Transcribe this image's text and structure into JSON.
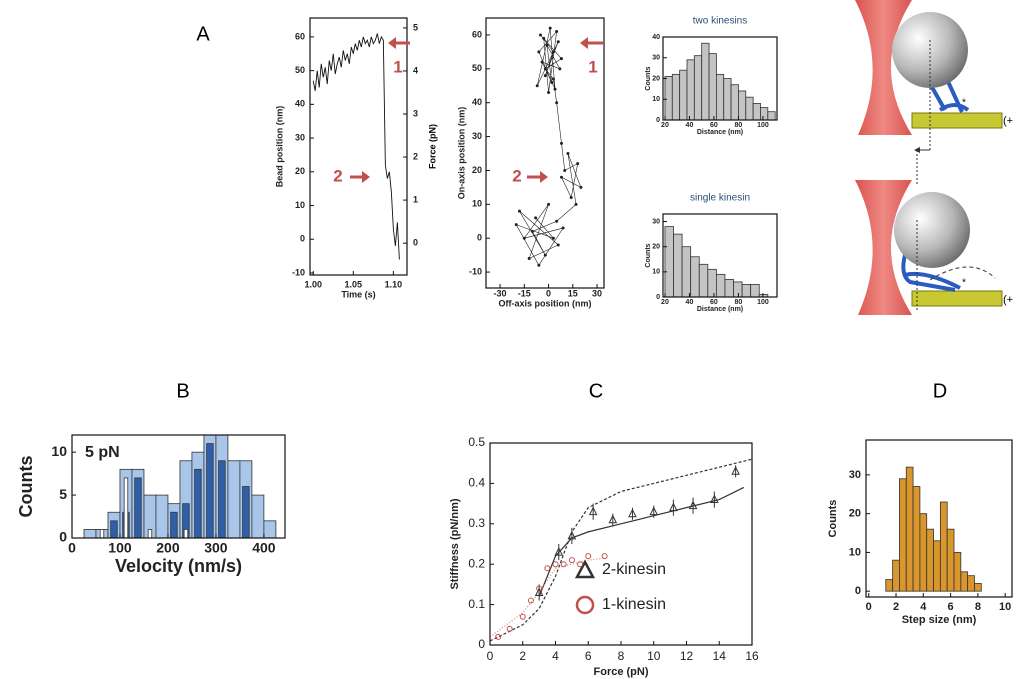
{
  "panel_labels": [
    "A",
    "B",
    "C",
    "D"
  ],
  "diagram": {
    "plus_labels": [
      "(+",
      "(+"
    ],
    "stars": [
      "*",
      "*"
    ]
  },
  "chart_data": [
    {
      "type": "line",
      "x_label": "Time (s)",
      "y_label": "Bead position (nm)",
      "y2_label": "Force (pN)",
      "annotations": [
        "1",
        "2"
      ],
      "xlim": [
        0.996,
        1.117
      ],
      "xticks": [
        {
          "value": 1,
          "label": "1.00"
        },
        {
          "value": 1.05,
          "label": "1.05"
        },
        {
          "value": 1.1,
          "label": "1.10"
        }
      ],
      "ylim": [
        -10.6,
        65.6
      ],
      "yticks": [
        -10,
        0,
        10,
        20,
        30,
        40,
        50,
        60
      ],
      "y2lim": [
        -0.74,
        5.23
      ],
      "y2ticks": [
        0,
        1,
        2,
        3,
        4,
        5
      ],
      "x": [
        1.0,
        1.0025,
        1.005,
        1.0075,
        1.01,
        1.0125,
        1.015,
        1.0175,
        1.02,
        1.0225,
        1.025,
        1.0275,
        1.03,
        1.0325,
        1.035,
        1.0375,
        1.04,
        1.0425,
        1.045,
        1.0475,
        1.05,
        1.0525,
        1.055,
        1.0575,
        1.06,
        1.0625,
        1.065,
        1.0675,
        1.07,
        1.0725,
        1.075,
        1.0775,
        1.08,
        1.0825,
        1.085,
        1.0875,
        1.09,
        1.0925,
        1.095,
        1.0975,
        1.1,
        1.1025,
        1.105,
        1.1075
      ],
      "series": [
        {
          "color": "#111111",
          "values": [
            47,
            44,
            50,
            45,
            52,
            48,
            51,
            46,
            53,
            50,
            55,
            49,
            52,
            54,
            51,
            56,
            53,
            55,
            52,
            57,
            55,
            58,
            56,
            59,
            57,
            60,
            58,
            59,
            57,
            60,
            58,
            59,
            61,
            58,
            60,
            59,
            22,
            18,
            20,
            14,
            3,
            -2,
            5,
            -6
          ]
        }
      ]
    },
    {
      "type": "scatter",
      "x_label": "Off-axis position (nm)",
      "y_label": "On-axis position (nm)",
      "annotations": [
        "1",
        "2"
      ],
      "connect": true,
      "color": "#222222",
      "xlim": [
        -38.7,
        34.3
      ],
      "xticks": [
        -30,
        -15,
        0,
        15,
        30
      ],
      "ylim": [
        -14.7,
        65
      ],
      "yticks": [
        -10,
        0,
        10,
        20,
        30,
        40,
        50,
        60
      ],
      "x": [
        -5,
        3,
        -2,
        6,
        -7,
        1,
        4,
        -4,
        7,
        -1,
        2,
        -6,
        5,
        0,
        -3,
        8,
        -2,
        3,
        5,
        8,
        10,
        18,
        14,
        8,
        20,
        12,
        17,
        5,
        -10,
        -2,
        -18,
        6,
        -12,
        0,
        -15,
        9,
        -6,
        -20,
        3,
        -8
      ],
      "values": [
        60,
        55,
        48,
        58,
        45,
        62,
        44,
        52,
        50,
        57,
        46,
        55,
        61,
        43,
        59,
        53,
        50,
        47,
        40,
        28,
        20,
        22,
        12,
        18,
        15,
        25,
        10,
        5,
        2,
        -5,
        8,
        -2,
        -6,
        10,
        0,
        3,
        -8,
        4,
        0,
        6
      ]
    },
    {
      "type": "histogram",
      "title": "two kinesins",
      "x_label": "Distance (nm)",
      "y_label": "Counts",
      "color": "#c4c4c4",
      "xlim": [
        18.4,
        111.5
      ],
      "xticks": [
        20,
        40,
        60,
        80,
        100
      ],
      "ylim": [
        0,
        40
      ],
      "yticks": [
        0,
        10,
        20,
        30,
        40
      ],
      "bins": [
        20,
        26,
        32,
        38,
        44,
        50,
        56,
        62,
        68,
        74,
        80,
        86,
        92,
        98,
        104,
        110
      ],
      "values": [
        21,
        22,
        24,
        29,
        31,
        37,
        32,
        22,
        20,
        17,
        14,
        11,
        8,
        6,
        4
      ]
    },
    {
      "type": "histogram",
      "title": "single kinesin",
      "x_label": "Distance (nm)",
      "y_label": "Counts",
      "color": "#c4c4c4",
      "xlim": [
        18.4,
        111.5
      ],
      "xticks": [
        20,
        40,
        60,
        80,
        100
      ],
      "ylim": [
        0,
        33
      ],
      "yticks": [
        0,
        10,
        20,
        30
      ],
      "bins": [
        20,
        27,
        34,
        41,
        48,
        55,
        62,
        69,
        76,
        83,
        90,
        97,
        104
      ],
      "values": [
        28,
        25,
        20,
        16,
        13,
        11,
        9,
        7,
        6,
        5,
        5,
        1
      ]
    },
    {
      "type": "histogram",
      "x_label": "Velocity (nm/s)",
      "y_label": "Counts",
      "annotations": [
        "5 pN"
      ],
      "xlim": [
        0,
        444
      ],
      "xticks": [
        0,
        100,
        200,
        300,
        400
      ],
      "ylim": [
        0,
        12
      ],
      "yticks": [
        0,
        5,
        10
      ],
      "bins": [
        25,
        50,
        75,
        100,
        125,
        150,
        175,
        200,
        225,
        250,
        275,
        300,
        325,
        350,
        375,
        400,
        425
      ],
      "series": [
        {
          "color": "#a9c6ea",
          "values": [
            1,
            1,
            3,
            8,
            8,
            5,
            5,
            4,
            9,
            10,
            12,
            12,
            9,
            9,
            5,
            2
          ]
        },
        {
          "color": "#2f5fa8",
          "values": [
            0,
            0,
            2,
            3,
            7,
            0,
            0,
            3,
            4,
            8,
            11,
            9,
            0,
            6,
            0,
            0
          ]
        },
        {
          "color": "#ffffff",
          "values": [
            0,
            1,
            0,
            7,
            0,
            1,
            0,
            0,
            1,
            0,
            0,
            0,
            0,
            0,
            0,
            0
          ]
        }
      ]
    },
    {
      "type": "line",
      "x_label": "Force (pN)",
      "y_label": "Stiffness (pN/nm)",
      "xlim": [
        0,
        16
      ],
      "xticks": [
        0,
        2,
        4,
        6,
        8,
        10,
        12,
        14,
        16
      ],
      "ylim": [
        0,
        0.5
      ],
      "yticks": [
        0,
        0.1,
        0.2,
        0.3,
        0.4,
        0.5
      ],
      "series": [
        {
          "name": "2-kinesin",
          "color": "#333333",
          "marker": "triangle",
          "x": [
            3,
            4.2,
            5,
            6.3,
            7.5,
            8.7,
            10,
            11.2,
            12.4,
            13.7,
            15
          ],
          "values": [
            0.13,
            0.23,
            0.27,
            0.33,
            0.31,
            0.325,
            0.33,
            0.34,
            0.345,
            0.36,
            0.43
          ],
          "errors": [
            0.02,
            0.02,
            0.02,
            0.02,
            0.015,
            0.015,
            0.015,
            0.02,
            0.02,
            0.02,
            0.015
          ]
        },
        {
          "name": "1-kinesin",
          "color": "#c0504d",
          "marker": "circle",
          "x": [
            0.5,
            1.2,
            2,
            2.5,
            3,
            3.5,
            4,
            4.5,
            5,
            5.5,
            6,
            7
          ],
          "values": [
            0.02,
            0.04,
            0.07,
            0.11,
            0.14,
            0.19,
            0.2,
            0.2,
            0.21,
            0.2,
            0.22,
            0.22
          ]
        }
      ],
      "fits": [
        {
          "color": "#333333",
          "dash": "none",
          "x": [
            3,
            4,
            5,
            6,
            8,
            10,
            12,
            14,
            15.5
          ],
          "values": [
            0.12,
            0.22,
            0.265,
            0.28,
            0.3,
            0.32,
            0.34,
            0.36,
            0.39
          ]
        },
        {
          "color": "#333333",
          "dash": "3,2",
          "x": [
            0,
            2,
            3,
            4,
            5,
            6,
            8,
            10,
            12,
            14,
            16
          ],
          "values": [
            0.01,
            0.05,
            0.09,
            0.17,
            0.28,
            0.34,
            0.38,
            0.4,
            0.42,
            0.44,
            0.46
          ]
        },
        {
          "color": "#e07a76",
          "dash": "1,2",
          "x": [
            0,
            1,
            2,
            3,
            4,
            5,
            6,
            7
          ],
          "values": [
            0.02,
            0.05,
            0.08,
            0.13,
            0.19,
            0.2,
            0.21,
            0.215
          ]
        }
      ]
    },
    {
      "type": "histogram",
      "x_label": "Step size (nm)",
      "y_label": "Counts",
      "color": "#d8962c",
      "xlim": [
        -0.2,
        10.5
      ],
      "xticks": [
        0,
        2,
        4,
        6,
        8,
        10
      ],
      "ylim": [
        -1.5,
        39
      ],
      "yticks": [
        0,
        10,
        20,
        30
      ],
      "bins": [
        1.25,
        1.75,
        2.25,
        2.75,
        3.25,
        3.75,
        4.25,
        4.75,
        5.25,
        5.75,
        6.25,
        6.75,
        7.25,
        7.75,
        8.25
      ],
      "values": [
        3,
        8,
        29,
        32,
        27,
        20,
        16,
        13,
        23,
        16,
        10,
        5,
        4,
        2
      ]
    }
  ]
}
